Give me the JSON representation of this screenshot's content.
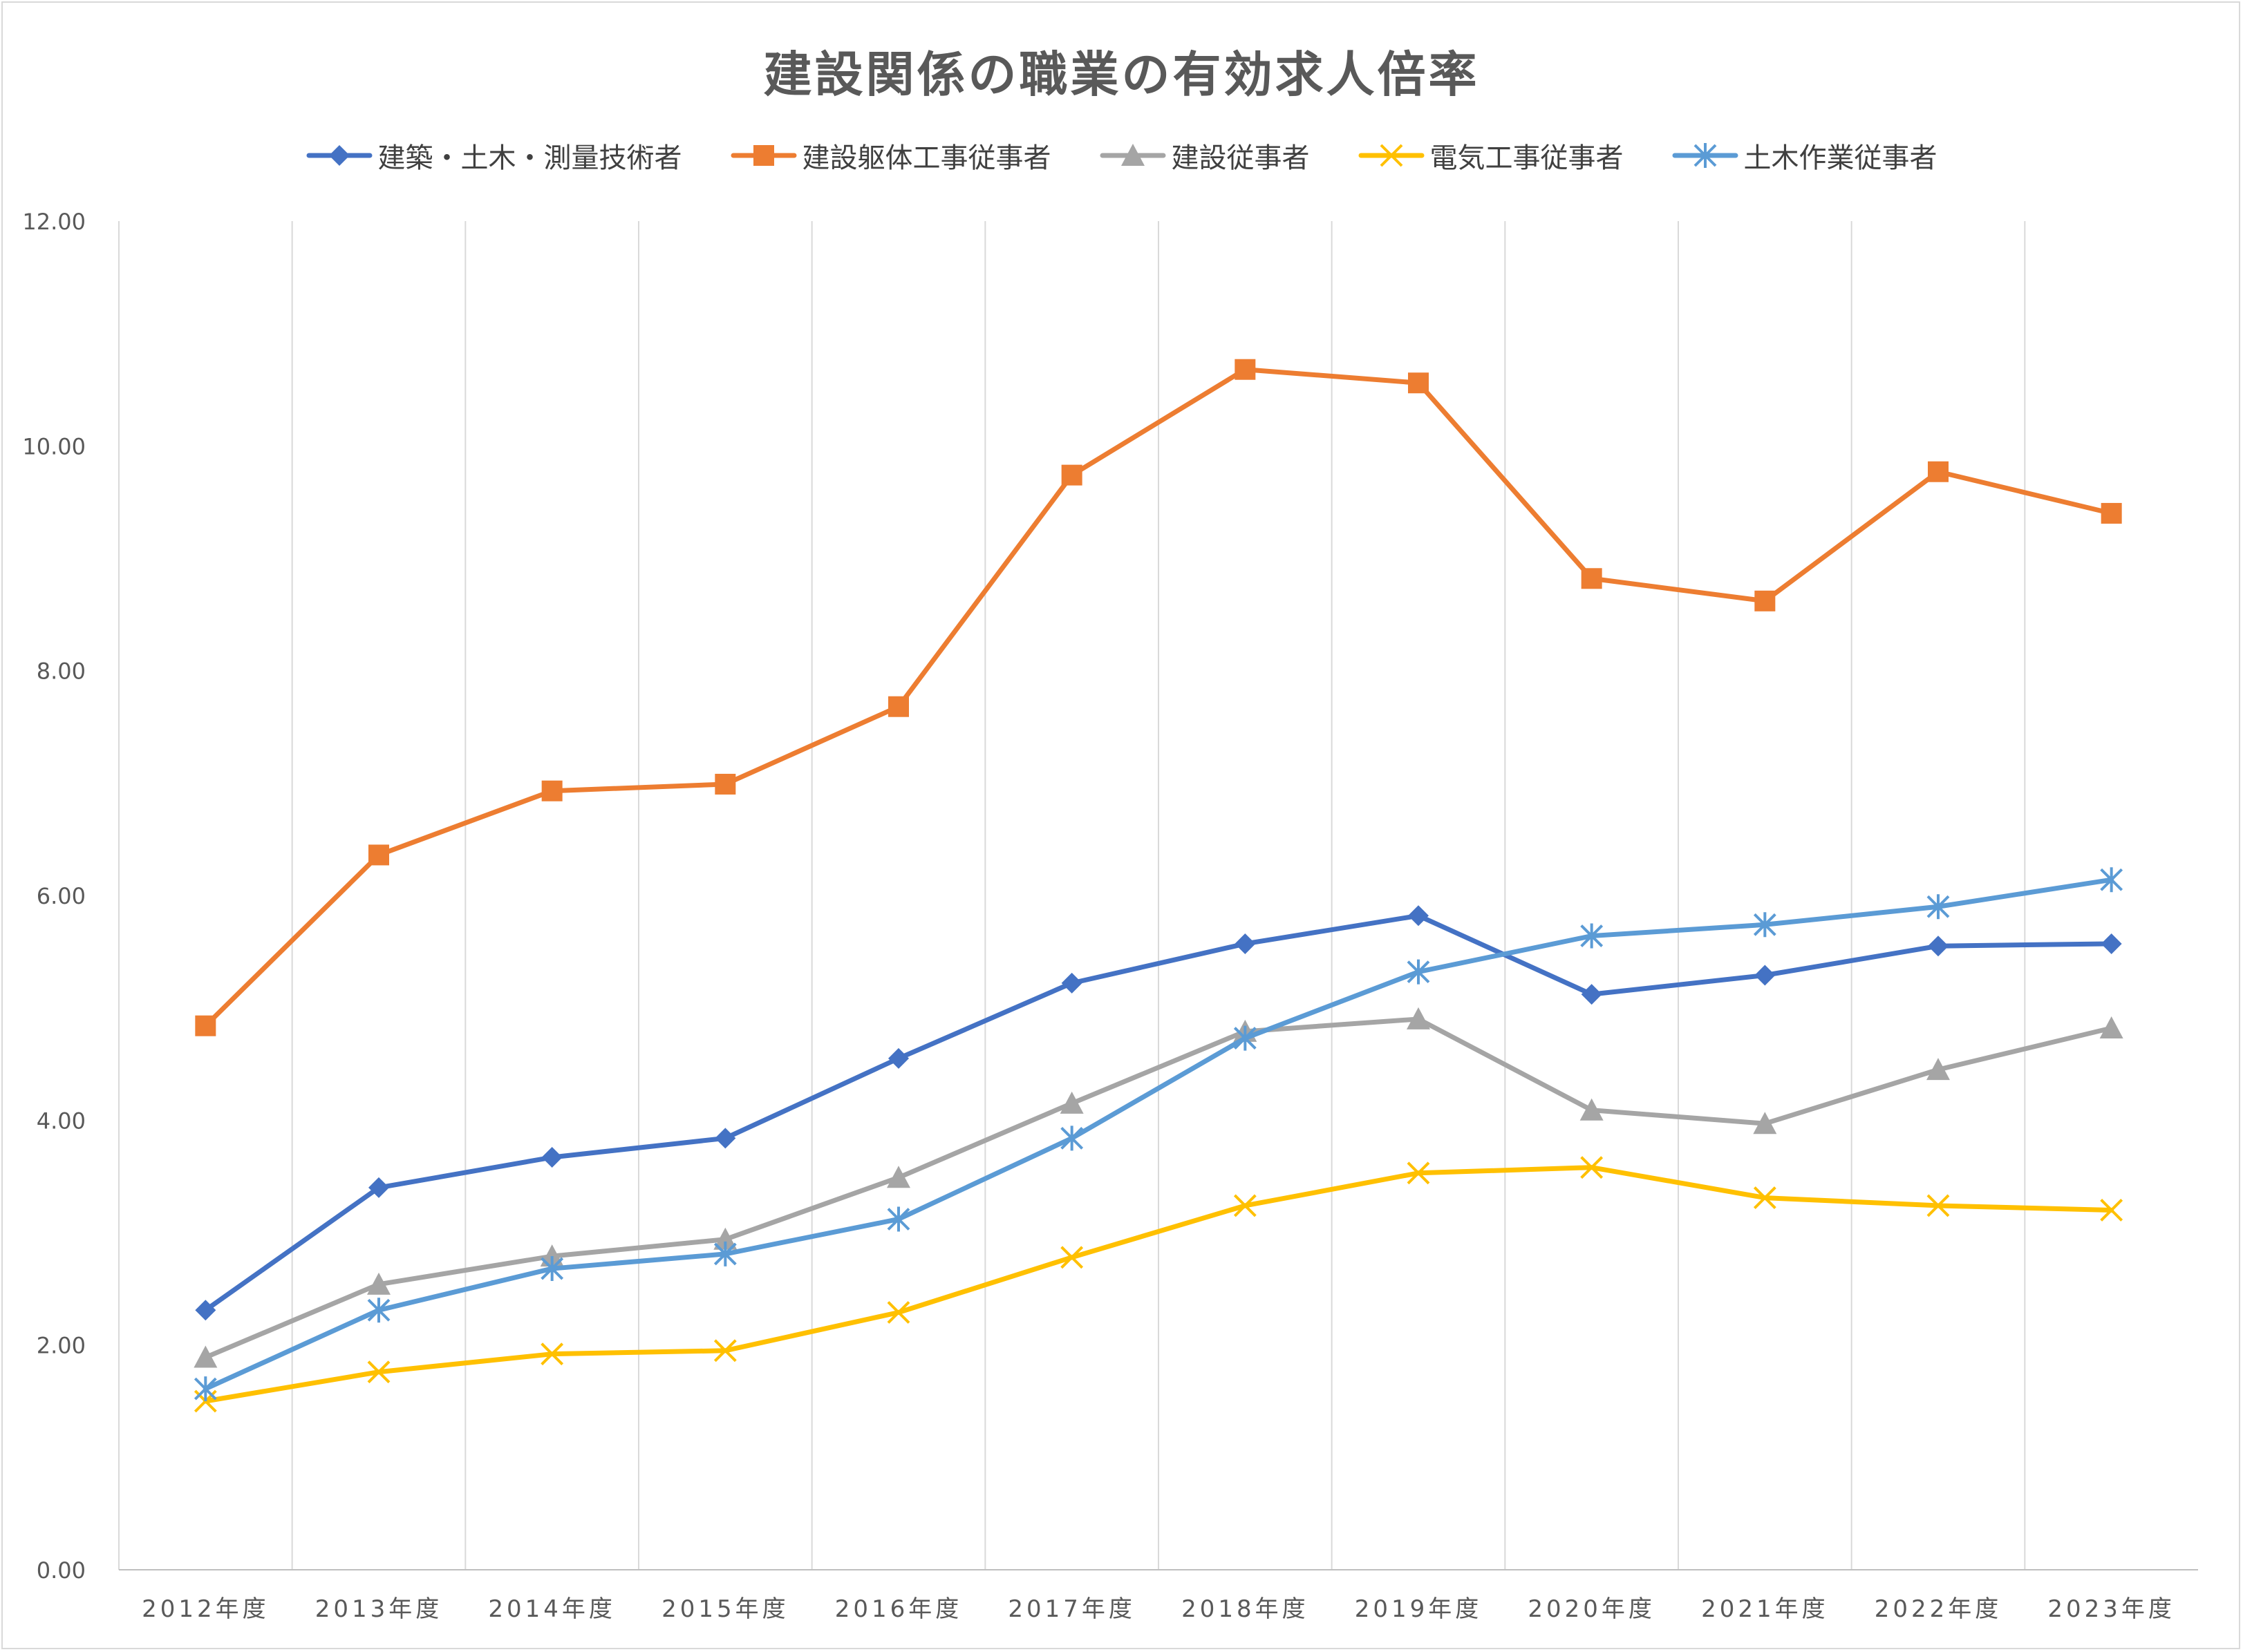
{
  "chart_data": {
    "type": "line",
    "title": "建設関係の職業の有効求人倍率",
    "categories": [
      "2012年度",
      "2013年度",
      "2014年度",
      "2015年度",
      "2016年度",
      "2017年度",
      "2018年度",
      "2019年度",
      "2020年度",
      "2021年度",
      "2022年度",
      "2023年度"
    ],
    "ylim": [
      0,
      12
    ],
    "yticks": [
      "0.00",
      "2.00",
      "4.00",
      "6.00",
      "8.00",
      "10.00",
      "12.00"
    ],
    "grid": "vertical",
    "legend_position": "top",
    "series": [
      {
        "name": "建築・土木・測量技術者",
        "color": "#4472c4",
        "marker": "diamond",
        "values": [
          2.31,
          3.4,
          3.67,
          3.84,
          4.55,
          5.22,
          5.57,
          5.82,
          5.12,
          5.29,
          5.55,
          5.57
        ]
      },
      {
        "name": "建設躯体工事従事者",
        "color": "#ed7d31",
        "marker": "square",
        "values": [
          4.84,
          6.36,
          6.93,
          6.99,
          7.68,
          9.74,
          10.68,
          10.56,
          8.82,
          8.62,
          9.77,
          9.4
        ]
      },
      {
        "name": "建設従事者",
        "color": "#a5a5a5",
        "marker": "triangle",
        "values": [
          1.89,
          2.54,
          2.79,
          2.94,
          3.49,
          4.15,
          4.79,
          4.9,
          4.09,
          3.97,
          4.45,
          4.82
        ]
      },
      {
        "name": "電気工事従事者",
        "color": "#ffc000",
        "marker": "x",
        "values": [
          1.5,
          1.76,
          1.92,
          1.95,
          2.29,
          2.78,
          3.24,
          3.53,
          3.58,
          3.31,
          3.24,
          3.2
        ]
      },
      {
        "name": "土木作業従事者",
        "color": "#5b9bd5",
        "marker": "star",
        "values": [
          1.61,
          2.31,
          2.68,
          2.81,
          3.12,
          3.84,
          4.73,
          5.32,
          5.64,
          5.74,
          5.9,
          6.14
        ]
      }
    ]
  }
}
